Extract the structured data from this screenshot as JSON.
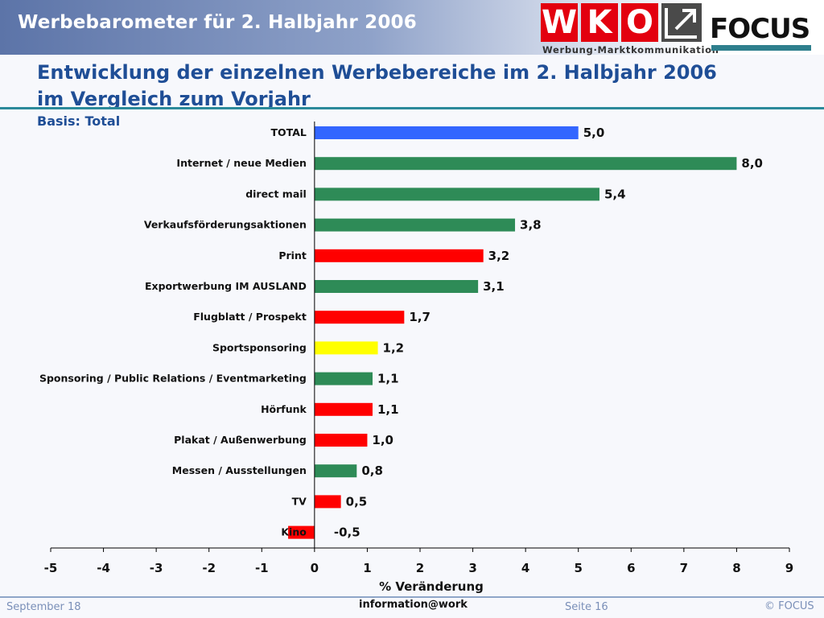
{
  "header": {
    "title": "Werbebarometer für 2. Halbjahr 2006",
    "wko_letters": [
      "W",
      "K",
      "O"
    ],
    "wko_tagline": "Werbung·Marktkommunikation",
    "focus_logo": "FOCUS"
  },
  "chart_data": {
    "type": "bar",
    "orientation": "horizontal",
    "title": "Entwicklung der einzelnen Werbebereiche im 2. Halbjahr 2006",
    "title_line2": "im Vergleich zum Vorjahr",
    "subtitle": "Basis: Total",
    "xlabel": "% Veränderung",
    "xlim": [
      -5,
      9
    ],
    "xticks": [
      "-5",
      "-4",
      "-3",
      "-2",
      "-1",
      "0",
      "1",
      "2",
      "3",
      "4",
      "5",
      "6",
      "7",
      "8",
      "9"
    ],
    "categories": [
      "TOTAL",
      "Internet / neue Medien",
      "direct mail",
      "Verkaufsförderungsaktionen",
      "Print",
      "Exportwerbung IM AUSLAND",
      "Flugblatt / Prospekt",
      "Sportsponsoring",
      "Sponsoring / Public Relations / Eventmarketing",
      "Hörfunk",
      "Plakat / Außenwerbung",
      "Messen / Ausstellungen",
      "TV",
      "Kino"
    ],
    "values": [
      5.0,
      8.0,
      5.4,
      3.8,
      3.2,
      3.1,
      1.7,
      1.2,
      1.1,
      1.1,
      1.0,
      0.8,
      0.5,
      -0.5
    ],
    "value_labels": [
      "5,0",
      "8,0",
      "5,4",
      "3,8",
      "3,2",
      "3,1",
      "1,7",
      "1,2",
      "1,1",
      "1,1",
      "1,0",
      "0,8",
      "0,5",
      "-0,5"
    ],
    "bar_colors": [
      "#3366ff",
      "#2e8b57",
      "#2e8b57",
      "#2e8b57",
      "#ff0000",
      "#2e8b57",
      "#ff0000",
      "#ffff00",
      "#2e8b57",
      "#ff0000",
      "#ff0000",
      "#2e8b57",
      "#ff0000",
      "#ff0000"
    ],
    "grid": false
  },
  "footer": {
    "date": "September 18",
    "center": "information@work",
    "page": "Seite 16",
    "copyright": "© FOCUS"
  }
}
